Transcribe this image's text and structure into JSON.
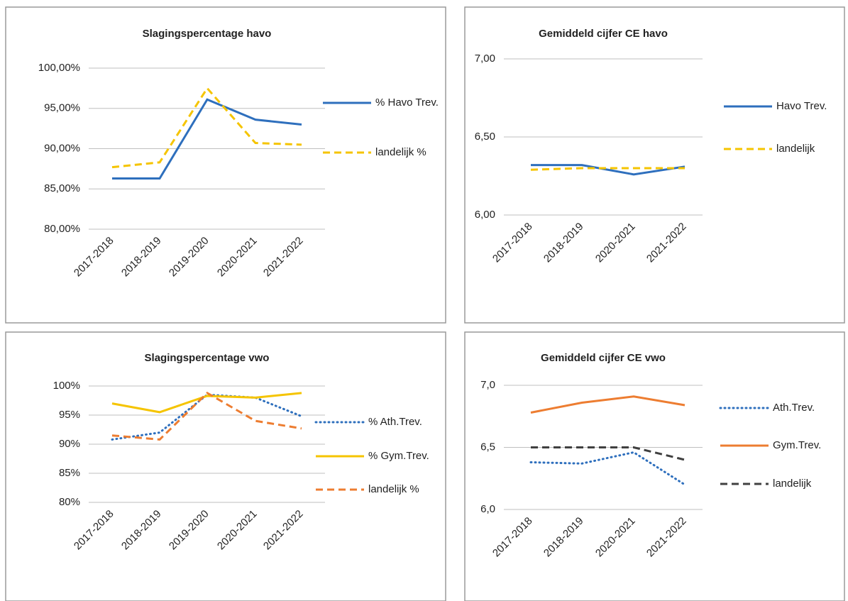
{
  "chart_data": [
    {
      "type": "line",
      "title": "Slagingspercentage havo",
      "categories": [
        "2017-2018",
        "2018-2019",
        "2019-2020",
        "2020-2021",
        "2021-2022"
      ],
      "series": [
        {
          "name": "% Havo Trev.",
          "color": "#2e6fbd",
          "style": "solid",
          "values": [
            86.3,
            86.3,
            96.1,
            93.6,
            93.0
          ]
        },
        {
          "name": "landelijk %",
          "color": "#f5c400",
          "style": "dashed",
          "values": [
            87.7,
            88.3,
            97.5,
            90.7,
            90.5
          ]
        }
      ],
      "ylim": [
        80,
        100
      ],
      "yticks": [
        {
          "value": 80,
          "label": "80,00%"
        },
        {
          "value": 85,
          "label": "85,00%"
        },
        {
          "value": 90,
          "label": "90,00%"
        },
        {
          "value": 95,
          "label": "95,00%"
        },
        {
          "value": 100,
          "label": "100,00%"
        }
      ],
      "grid": true,
      "legend": "right"
    },
    {
      "type": "line",
      "title": "Gemiddeld cijfer CE havo",
      "categories": [
        "2017-2018",
        "2018-2019",
        "2020-2021",
        "2021-2022"
      ],
      "series": [
        {
          "name": "Havo Trev.",
          "color": "#2e6fbd",
          "style": "solid",
          "values": [
            6.32,
            6.32,
            6.26,
            6.31
          ]
        },
        {
          "name": "landelijk",
          "color": "#f5c400",
          "style": "dashed",
          "values": [
            6.29,
            6.3,
            6.3,
            6.3
          ]
        }
      ],
      "ylim": [
        6,
        7
      ],
      "yticks": [
        {
          "value": 6,
          "label": "6,00"
        },
        {
          "value": 6.5,
          "label": "6,50"
        },
        {
          "value": 7,
          "label": "7,00"
        }
      ],
      "grid": true,
      "legend": "right"
    },
    {
      "type": "line",
      "title": "Slagingspercentage vwo",
      "categories": [
        "2017-2018",
        "2018-2019",
        "2019-2020",
        "2020-2021",
        "2021-2022"
      ],
      "series": [
        {
          "name": "% Ath.Trev.",
          "color": "#2e6fbd",
          "style": "dotted",
          "values": [
            90.8,
            92.0,
            98.5,
            98.0,
            94.8
          ]
        },
        {
          "name": "% Gym.Trev.",
          "color": "#f5c400",
          "style": "solid",
          "values": [
            97.0,
            95.5,
            98.3,
            98.0,
            98.8
          ]
        },
        {
          "name": "landelijk %",
          "color": "#ed7d31",
          "style": "dashed",
          "values": [
            91.5,
            90.8,
            98.8,
            94.0,
            92.7
          ]
        }
      ],
      "ylim": [
        80,
        100
      ],
      "yticks": [
        {
          "value": 80,
          "label": "80%"
        },
        {
          "value": 85,
          "label": "85%"
        },
        {
          "value": 90,
          "label": "90%"
        },
        {
          "value": 95,
          "label": "95%"
        },
        {
          "value": 100,
          "label": "100%"
        }
      ],
      "grid": true,
      "legend": "right"
    },
    {
      "type": "line",
      "title": "Gemiddeld cijfer CE vwo",
      "categories": [
        "2017-2018",
        "2018-2019",
        "2020-2021",
        "2021-2022"
      ],
      "series": [
        {
          "name": "Ath.Trev.",
          "color": "#2e6fbd",
          "style": "dotted",
          "values": [
            6.38,
            6.37,
            6.46,
            6.2
          ]
        },
        {
          "name": "Gym.Trev.",
          "color": "#ed7d31",
          "style": "solid",
          "values": [
            6.78,
            6.86,
            6.91,
            6.84
          ]
        },
        {
          "name": "landelijk",
          "color": "#404040",
          "style": "dashed",
          "values": [
            6.5,
            6.5,
            6.5,
            6.4
          ]
        }
      ],
      "ylim": [
        6,
        7
      ],
      "yticks": [
        {
          "value": 6,
          "label": "6,0"
        },
        {
          "value": 6.5,
          "label": "6,5"
        },
        {
          "value": 7,
          "label": "7,0"
        }
      ],
      "grid": true,
      "legend": "right"
    }
  ]
}
